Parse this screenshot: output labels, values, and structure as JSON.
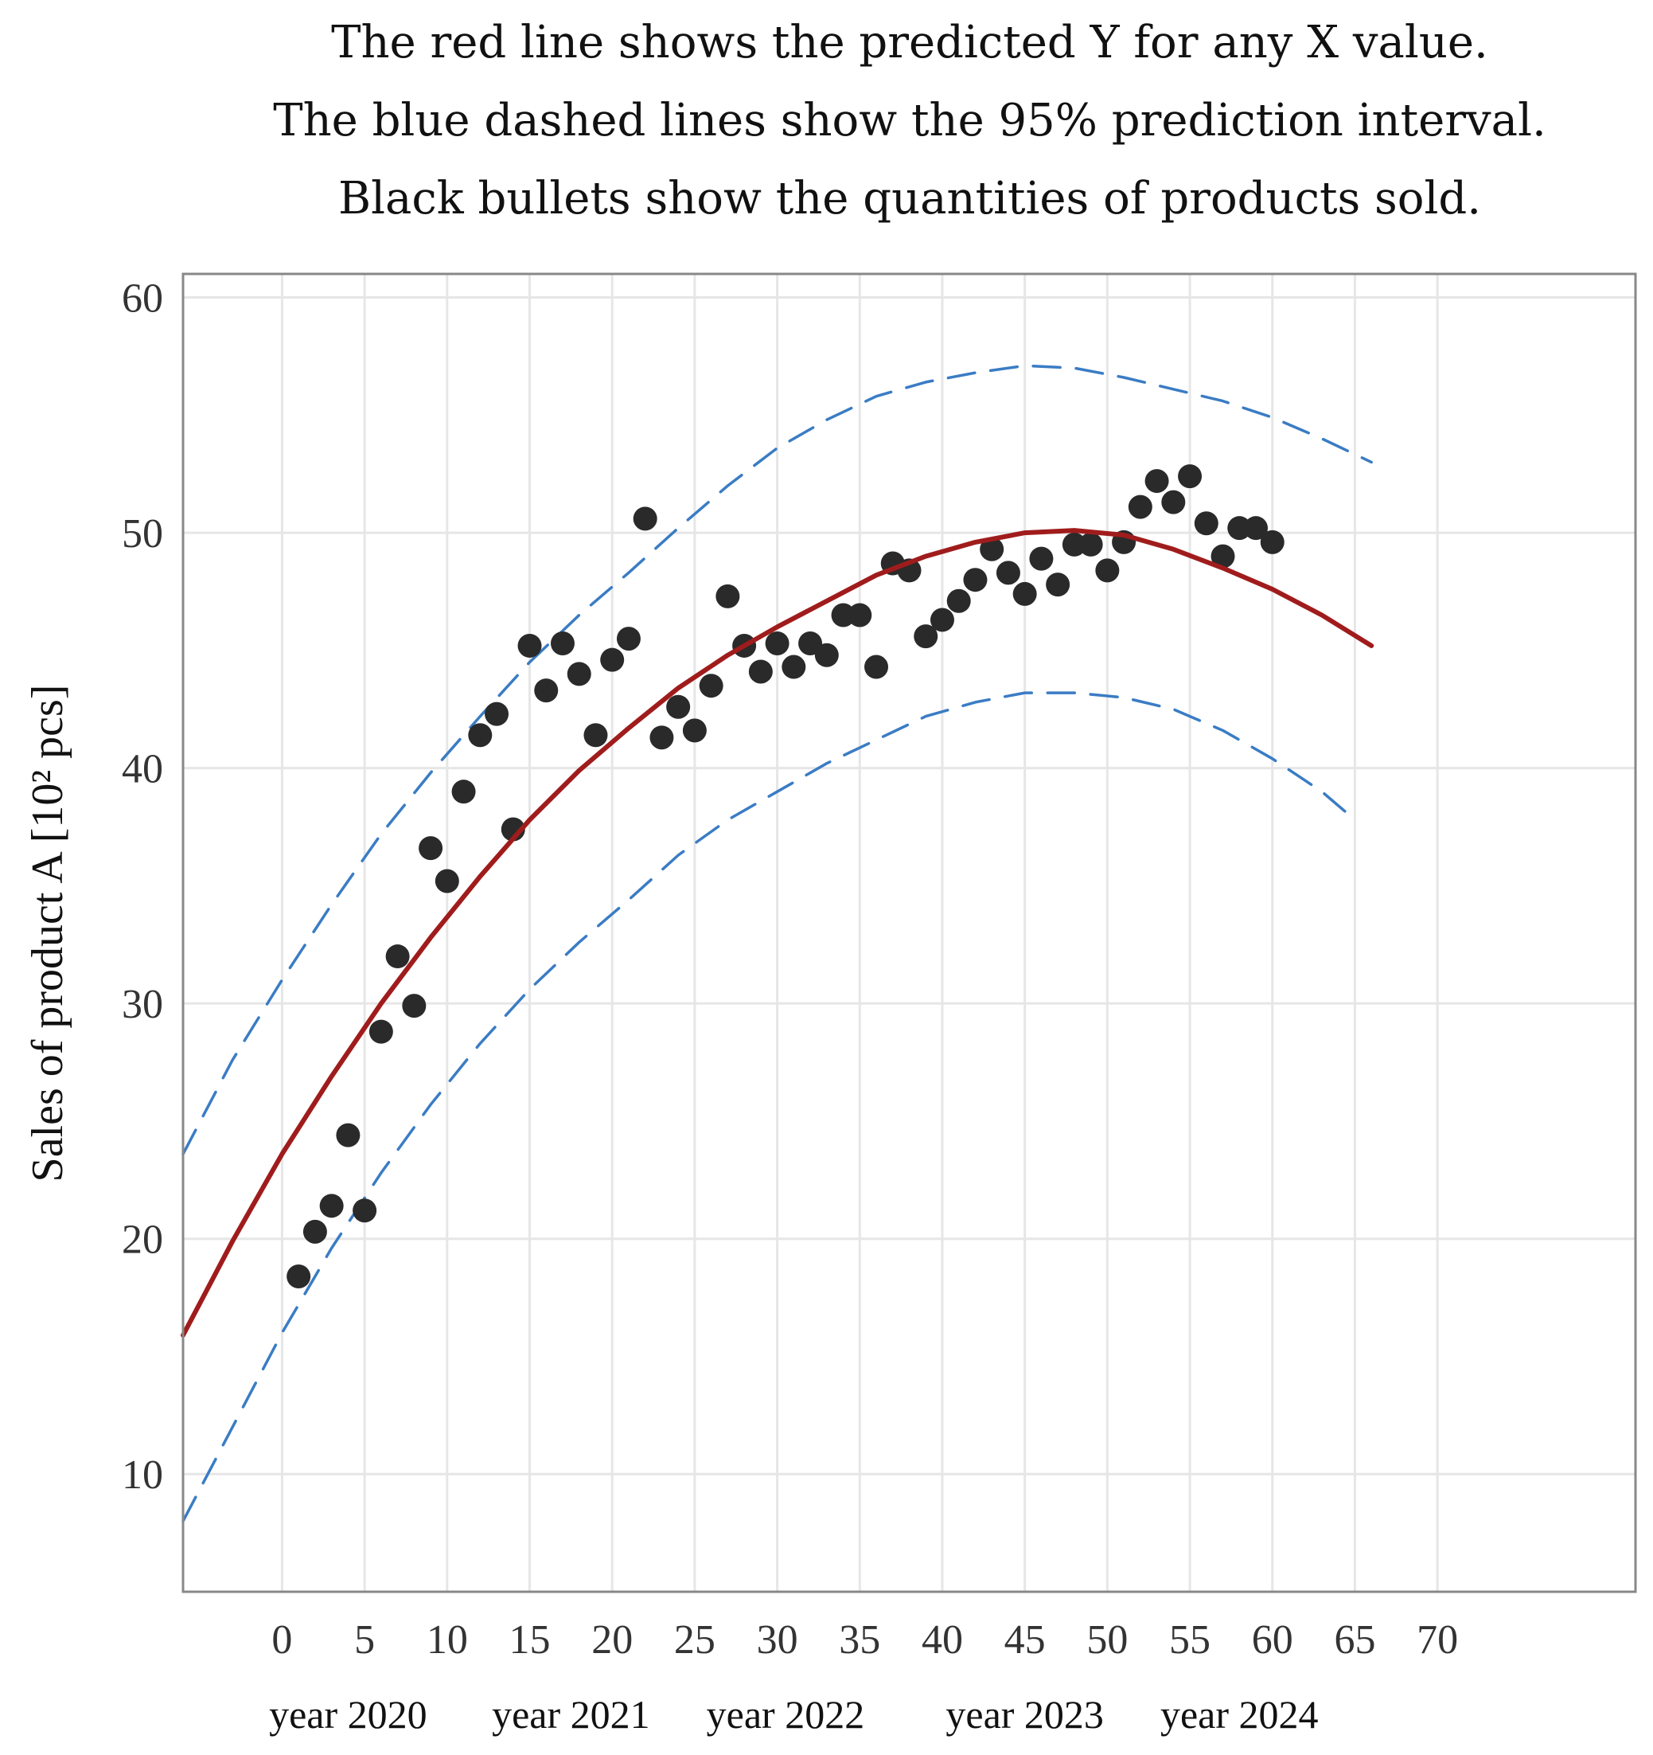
{
  "colors": {
    "prediction_line": "#a01c1c",
    "interval_line": "#3a7cc4",
    "points": "#2a2a2a",
    "grid": "#e6e6e6",
    "frame": "#888888"
  },
  "chart_data": {
    "type": "scatter",
    "title_lines": [
      "The red line shows the predicted Y for any  X value.",
      "The blue dashed lines show the 95% prediction interval.",
      "Black bullets show the quantities of products sold."
    ],
    "xlabel": "",
    "ylabel": "Sales of product A [10² pcs]",
    "xlim": [
      -6,
      82
    ],
    "ylim": [
      5,
      61
    ],
    "x_ticks": [
      0,
      5,
      10,
      15,
      20,
      25,
      30,
      35,
      40,
      45,
      50,
      55,
      60,
      65,
      70
    ],
    "y_ticks": [
      10,
      20,
      30,
      40,
      50,
      60
    ],
    "year_labels": [
      "year 2020",
      "year 2021",
      "year 2022",
      "year 2023",
      "year 2024"
    ],
    "year_label_x": [
      4,
      17.5,
      30.5,
      45,
      58
    ],
    "grid": true,
    "series": [
      {
        "name": "Products sold",
        "kind": "points",
        "x": [
          1,
          2,
          3,
          4,
          5,
          6,
          7,
          8,
          9,
          10,
          11,
          12,
          13,
          14,
          15,
          16,
          17,
          18,
          19,
          20,
          21,
          22,
          23,
          24,
          25,
          26,
          27,
          28,
          29,
          30,
          31,
          32,
          33,
          34,
          35,
          36,
          37,
          38,
          39,
          40,
          41,
          42,
          43,
          44,
          45,
          46,
          47,
          48,
          49,
          50,
          51,
          52,
          53,
          54,
          55,
          56,
          57,
          58,
          59,
          60
        ],
        "y": [
          18.4,
          20.3,
          21.4,
          24.4,
          21.2,
          28.8,
          32.0,
          29.9,
          36.6,
          35.2,
          39.0,
          41.4,
          42.3,
          37.4,
          45.2,
          43.3,
          45.3,
          44.0,
          41.4,
          44.6,
          45.5,
          50.6,
          41.3,
          42.6,
          41.6,
          43.5,
          47.3,
          45.2,
          44.1,
          45.3,
          44.3,
          45.3,
          44.8,
          46.5,
          46.5,
          44.3,
          48.7,
          48.4,
          45.6,
          46.3,
          47.1,
          48.0,
          49.3,
          48.3,
          47.4,
          48.9,
          47.8,
          49.5,
          49.5,
          48.4,
          49.6,
          51.1,
          52.2,
          51.3,
          52.4,
          50.4,
          49.0,
          50.2,
          50.2,
          49.6
        ]
      },
      {
        "name": "Predicted Y",
        "kind": "line",
        "x": [
          -6,
          -3,
          0,
          3,
          6,
          9,
          12,
          15,
          18,
          21,
          24,
          27,
          30,
          33,
          36,
          39,
          42,
          45,
          48,
          51,
          54,
          57,
          60,
          63,
          66
        ],
        "y": [
          15.9,
          19.9,
          23.6,
          26.9,
          30.0,
          32.8,
          35.4,
          37.8,
          39.9,
          41.7,
          43.4,
          44.8,
          46.0,
          47.1,
          48.2,
          49.0,
          49.6,
          50.0,
          50.1,
          49.9,
          49.3,
          48.5,
          47.6,
          46.5,
          45.2
        ]
      },
      {
        "name": "95% prediction interval upper",
        "kind": "dashed",
        "x": [
          -6,
          -3,
          0,
          3,
          6,
          9,
          12,
          15,
          18,
          21,
          24,
          27,
          30,
          33,
          36,
          39,
          42,
          45,
          48,
          51,
          54,
          57,
          60,
          63,
          66
        ],
        "y": [
          23.6,
          27.6,
          31.0,
          34.2,
          37.2,
          39.8,
          42.2,
          44.5,
          46.5,
          48.3,
          50.2,
          52.0,
          53.6,
          54.8,
          55.8,
          56.4,
          56.8,
          57.1,
          57.0,
          56.6,
          56.1,
          55.6,
          54.9,
          54.0,
          53.0
        ]
      },
      {
        "name": "95% prediction interval lower",
        "kind": "dashed",
        "x": [
          -6,
          -3,
          0,
          3,
          6,
          9,
          12,
          15,
          18,
          21,
          24,
          27,
          30,
          33,
          36,
          39,
          42,
          45,
          48,
          51,
          54,
          57,
          60,
          63,
          65
        ],
        "y": [
          8.0,
          12.0,
          16.0,
          19.6,
          22.8,
          25.7,
          28.3,
          30.6,
          32.6,
          34.4,
          36.3,
          37.8,
          39.0,
          40.2,
          41.2,
          42.2,
          42.8,
          43.2,
          43.2,
          43.0,
          42.5,
          41.6,
          40.4,
          39.0,
          37.8
        ]
      }
    ]
  }
}
